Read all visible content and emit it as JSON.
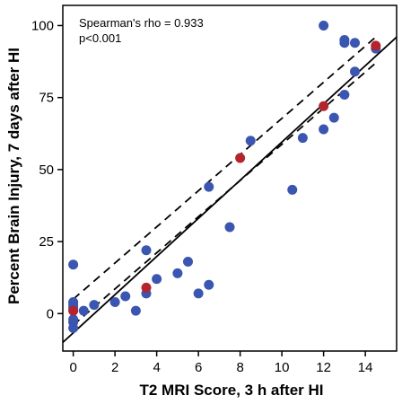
{
  "chart_data": {
    "type": "scatter",
    "xlabel": "T2 MRI Score, 3 h after HI",
    "ylabel": "Percent Brain Injury, 7 days after HI",
    "xlim": [
      -0.5,
      15.5
    ],
    "ylim": [
      -13,
      107
    ],
    "x_ticks": [
      0,
      2,
      4,
      6,
      8,
      10,
      12,
      14
    ],
    "y_ticks": [
      0,
      25,
      50,
      75,
      100
    ],
    "grid": false,
    "annotations": [
      "Spearman's rho = 0.933",
      "p<0.001"
    ],
    "colors": {
      "blue_points": "#3a56b0",
      "red_points": "#b5242c",
      "lines": "#000000"
    },
    "fit_line": {
      "x": [
        -0.5,
        15.5
      ],
      "y": [
        -10,
        96
      ]
    },
    "confidence_bands": [
      {
        "x": [
          0,
          14.5
        ],
        "y": [
          5,
          96
        ]
      },
      {
        "x": [
          0,
          14.5
        ],
        "y": [
          -4,
          87
        ]
      }
    ],
    "series": [
      {
        "color": "#3a56b0",
        "points": [
          [
            0,
            17
          ],
          [
            0,
            4
          ],
          [
            0,
            3
          ],
          [
            0,
            2
          ],
          [
            0,
            1
          ],
          [
            0,
            -2
          ],
          [
            0,
            -3
          ],
          [
            0,
            -5
          ],
          [
            0.5,
            1
          ],
          [
            1,
            3
          ],
          [
            2,
            4
          ],
          [
            2.5,
            6
          ],
          [
            3,
            1
          ],
          [
            3.5,
            22
          ],
          [
            3.5,
            7
          ],
          [
            4,
            12
          ],
          [
            5,
            14
          ],
          [
            5.5,
            18
          ],
          [
            6,
            7
          ],
          [
            6.5,
            44
          ],
          [
            6.5,
            10
          ],
          [
            7.5,
            30
          ],
          [
            8.5,
            60
          ],
          [
            10.5,
            43
          ],
          [
            11,
            61
          ],
          [
            12,
            100
          ],
          [
            12,
            64
          ],
          [
            12.5,
            68
          ],
          [
            13,
            95
          ],
          [
            13,
            94
          ],
          [
            13,
            76
          ],
          [
            13.5,
            94
          ],
          [
            13.5,
            84
          ],
          [
            14.5,
            92
          ]
        ]
      },
      {
        "color": "#b5242c",
        "points": [
          [
            0,
            1
          ],
          [
            3.5,
            9
          ],
          [
            8,
            54
          ],
          [
            12,
            72
          ],
          [
            14.5,
            93
          ]
        ]
      }
    ]
  }
}
